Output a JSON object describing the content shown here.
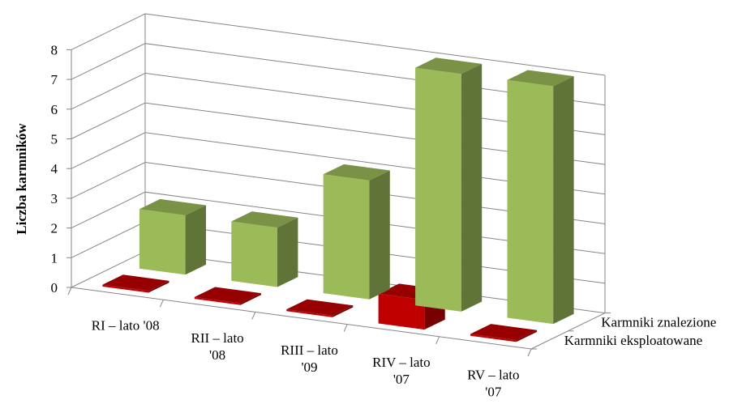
{
  "chart_data": {
    "type": "bar",
    "title": "",
    "xlabel": "",
    "ylabel": "Liczba karmników",
    "ylim": [
      0,
      8
    ],
    "yticks": [
      "0",
      "1",
      "2",
      "3",
      "4",
      "5",
      "6",
      "7",
      "8"
    ],
    "categories": [
      "RI – lato '08",
      "RII – lato '08",
      "RIII – lato '09",
      "RIV – lato '07",
      "RV – lato '07"
    ],
    "category_lines": [
      [
        "RI – lato '08"
      ],
      [
        "RII – lato",
        "'08"
      ],
      [
        "RIII – lato",
        "'09"
      ],
      [
        "RIV – lato",
        "'07"
      ],
      [
        "RV – lato",
        "'07"
      ]
    ],
    "series": [
      {
        "name": "Karmniki eksploatowane",
        "values": [
          0,
          0,
          0,
          1,
          0
        ],
        "color": "#c00000"
      },
      {
        "name": "Karmniki znalezione",
        "values": [
          2,
          2,
          4,
          8,
          8
        ],
        "color": "#9bbb59"
      }
    ],
    "grid": true
  }
}
